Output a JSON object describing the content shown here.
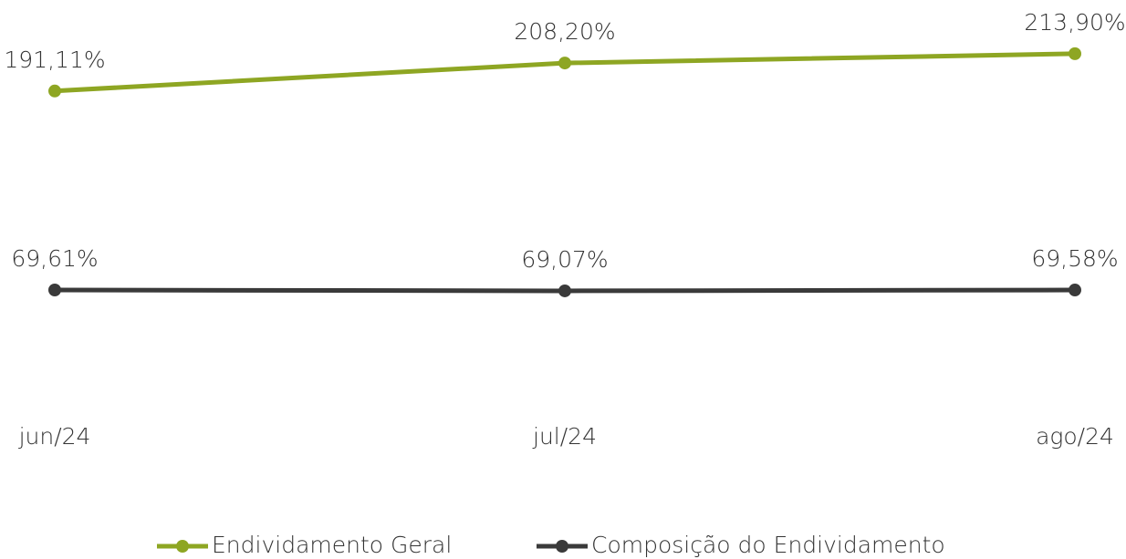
{
  "chart_data": {
    "type": "line",
    "categories": [
      "jun/24",
      "jul/24",
      "ago/24"
    ],
    "series": [
      {
        "name": "Endividamento Geral",
        "color": "#8ea623",
        "values": [
          191.11,
          208.2,
          213.9
        ],
        "value_labels": [
          "191,11%",
          "208,20%",
          "213,90%"
        ]
      },
      {
        "name": "Composição do Endividamento",
        "color": "#3a3a3a",
        "values": [
          69.61,
          69.07,
          69.58
        ],
        "value_labels": [
          "69,61%",
          "69,07%",
          "69,58%"
        ]
      }
    ],
    "ylim": [
      0,
      240
    ],
    "legend": "bottom"
  }
}
